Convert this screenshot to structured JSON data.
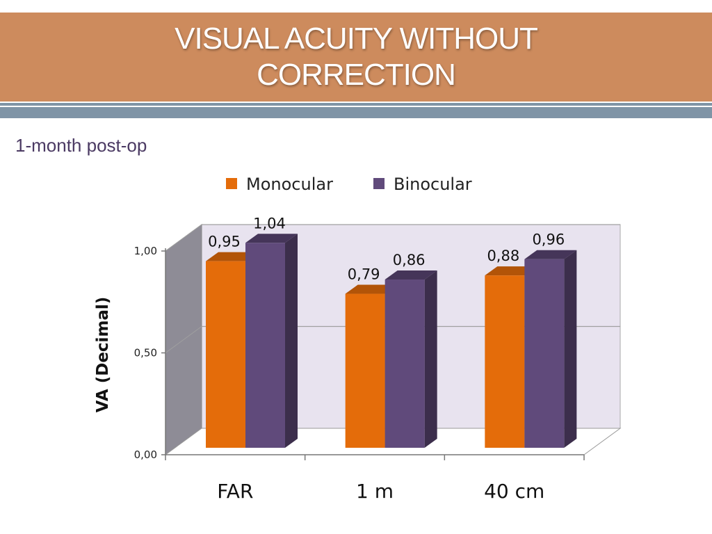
{
  "slide": {
    "title": "VISUAL ACUITY WITHOUT CORRECTION",
    "subtitle": "1-month post-op"
  },
  "colors": {
    "header_bg": "#cd8b5d",
    "band": "#7f94a6",
    "monocular": "#e46c0a",
    "binocular": "#604a7b",
    "plot_back": "#e8e3ef"
  },
  "chart_data": {
    "type": "bar",
    "three_d": true,
    "categories": [
      "FAR",
      "1 m",
      "40 cm"
    ],
    "series": [
      {
        "name": "Monocular",
        "values": [
          0.95,
          0.79,
          0.88
        ],
        "labels": [
          "0,95",
          "0,79",
          "0,88"
        ]
      },
      {
        "name": "Binocular",
        "values": [
          1.04,
          0.86,
          0.96
        ],
        "labels": [
          "1,04",
          "0,86",
          "0,96"
        ]
      }
    ],
    "ylabel": "VA  (Decimal)",
    "xlabel": "",
    "ylim": [
      0,
      1.0
    ],
    "yticks": [
      "0,00",
      "0,50",
      "1,00"
    ],
    "legend_position": "top",
    "grid": true
  }
}
